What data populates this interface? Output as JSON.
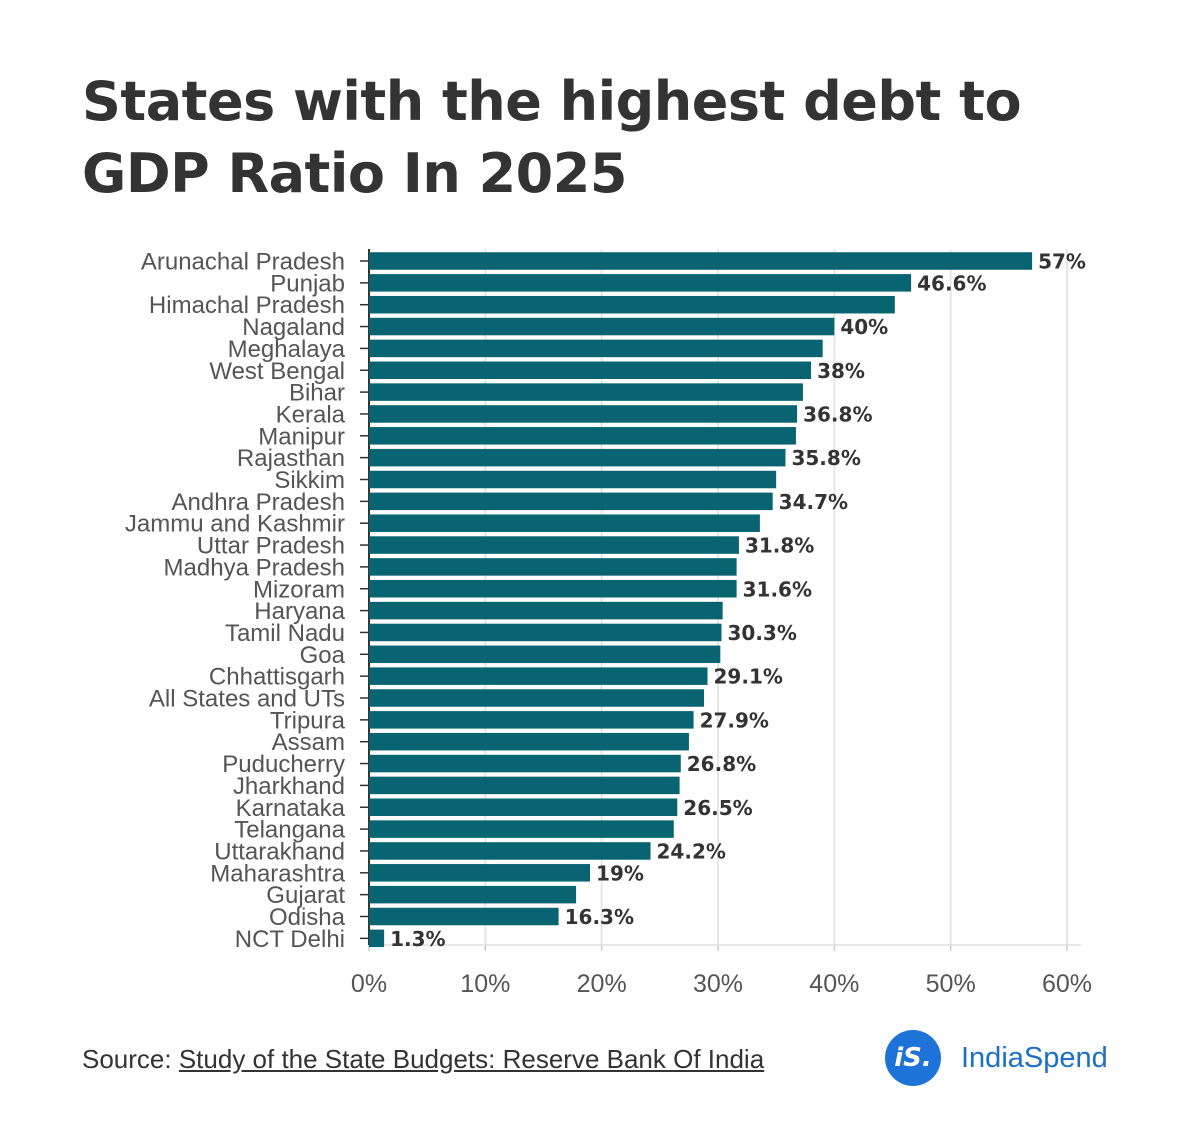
{
  "title": "States with the highest debt to GDP Ratio In 2025",
  "footer": {
    "source_prefix": "Source: ",
    "source_link": "Study of the State Budgets: Reserve Bank Of India"
  },
  "brand": {
    "icon_text": "iS.",
    "name": "IndiaSpend",
    "color": "#1e73d8"
  },
  "chart_data": {
    "type": "bar",
    "orientation": "horizontal",
    "bar_color": "#086470",
    "grid": true,
    "xlim": [
      0,
      60
    ],
    "xticks": [
      0,
      10,
      20,
      30,
      40,
      50,
      60
    ],
    "xtick_labels": [
      "0%",
      "10%",
      "20%",
      "30%",
      "40%",
      "50%",
      "60%"
    ],
    "categories": [
      "Arunachal Pradesh",
      "Punjab",
      "Himachal Pradesh",
      "Nagaland",
      "Meghalaya",
      "West Bengal",
      "Bihar",
      "Kerala",
      "Manipur",
      "Rajasthan",
      "Sikkim",
      "Andhra Pradesh",
      "Jammu and Kashmir",
      "Uttar Pradesh",
      "Madhya Pradesh",
      "Mizoram",
      "Haryana",
      "Tamil Nadu",
      "Goa",
      "Chhattisgarh",
      "All States and UTs",
      "Tripura",
      "Assam",
      "Puducherry",
      "Jharkhand",
      "Karnataka",
      "Telangana",
      "Uttarakhand",
      "Maharashtra",
      "Gujarat",
      "Odisha",
      "NCT Delhi"
    ],
    "values": [
      57,
      46.6,
      45.2,
      40,
      39,
      38,
      37.3,
      36.8,
      36.7,
      35.8,
      35,
      34.7,
      33.6,
      31.8,
      31.6,
      31.6,
      30.4,
      30.3,
      30.2,
      29.1,
      28.8,
      27.9,
      27.5,
      26.8,
      26.7,
      26.5,
      26.2,
      24.2,
      19,
      17.8,
      16.3,
      1.3
    ],
    "data_labels": [
      "57%",
      "46.6%",
      "",
      "40%",
      "",
      "38%",
      "",
      "36.8%",
      "",
      "35.8%",
      "",
      "34.7%",
      "",
      "31.8%",
      "",
      "31.6%",
      "",
      "30.3%",
      "",
      "29.1%",
      "",
      "27.9%",
      "",
      "26.8%",
      "",
      "26.5%",
      "",
      "24.2%",
      "19%",
      "",
      "16.3%",
      "1.3%"
    ]
  }
}
